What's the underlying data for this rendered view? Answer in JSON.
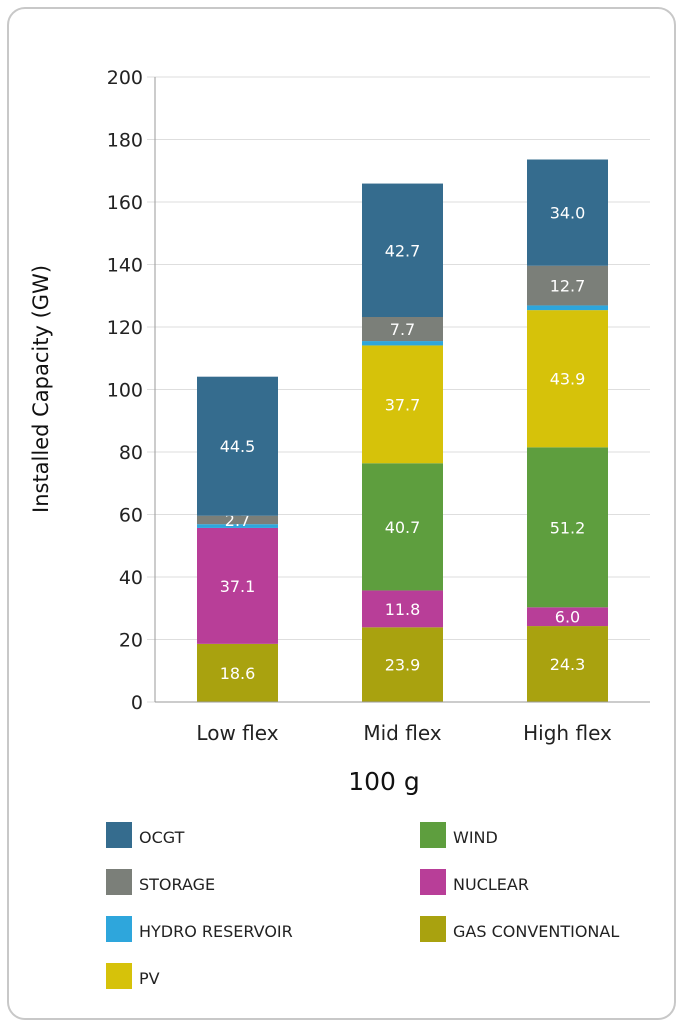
{
  "chart_data": {
    "type": "bar",
    "stacked": true,
    "categories": [
      "Low flex",
      "Mid flex",
      "High flex"
    ],
    "xlabel": "100 g",
    "ylabel": "Installed Capacity (GW)",
    "ylim": [
      0,
      200
    ],
    "yticks": [
      0,
      20,
      40,
      60,
      80,
      100,
      120,
      140,
      160,
      180,
      200
    ],
    "grid": true,
    "legend_position": "bottom",
    "series": [
      {
        "name": "GAS CONVENTIONAL",
        "color": "#a9a20f",
        "values": [
          18.6,
          23.9,
          24.3
        ],
        "labels": [
          "18.6",
          "23.9",
          "24.3"
        ]
      },
      {
        "name": "NUCLEAR",
        "color": "#b83e98",
        "values": [
          37.1,
          11.8,
          6.0
        ],
        "labels": [
          "37.1",
          "11.8",
          "6.0"
        ]
      },
      {
        "name": "WIND",
        "color": "#5e9e3e",
        "values": [
          0,
          40.7,
          51.2
        ],
        "labels": [
          "",
          "40.7",
          "51.2"
        ]
      },
      {
        "name": "PV",
        "color": "#d6c20a",
        "values": [
          0,
          37.7,
          43.9
        ],
        "labels": [
          "",
          "37.7",
          "43.9"
        ]
      },
      {
        "name": "HYDRO RESERVOIR",
        "color": "#2ea6dc",
        "values": [
          1.2,
          1.4,
          1.5
        ],
        "labels": [
          "",
          "",
          ""
        ]
      },
      {
        "name": "STORAGE",
        "color": "#7b7f79",
        "values": [
          2.7,
          7.7,
          12.7
        ],
        "labels": [
          "2.7",
          "7.7",
          "12.7"
        ]
      },
      {
        "name": "OCGT",
        "color": "#356c8e",
        "values": [
          44.5,
          42.7,
          34.0
        ],
        "labels": [
          "44.5",
          "42.7",
          "34.0"
        ]
      }
    ],
    "legend": [
      {
        "name": "OCGT",
        "color": "#356c8e"
      },
      {
        "name": "WIND",
        "color": "#5e9e3e"
      },
      {
        "name": "STORAGE",
        "color": "#7b7f79"
      },
      {
        "name": "NUCLEAR",
        "color": "#b83e98"
      },
      {
        "name": "HYDRO RESERVOIR",
        "color": "#2ea6dc"
      },
      {
        "name": "GAS CONVENTIONAL",
        "color": "#a9a20f"
      },
      {
        "name": "PV",
        "color": "#d6c20a"
      }
    ]
  }
}
